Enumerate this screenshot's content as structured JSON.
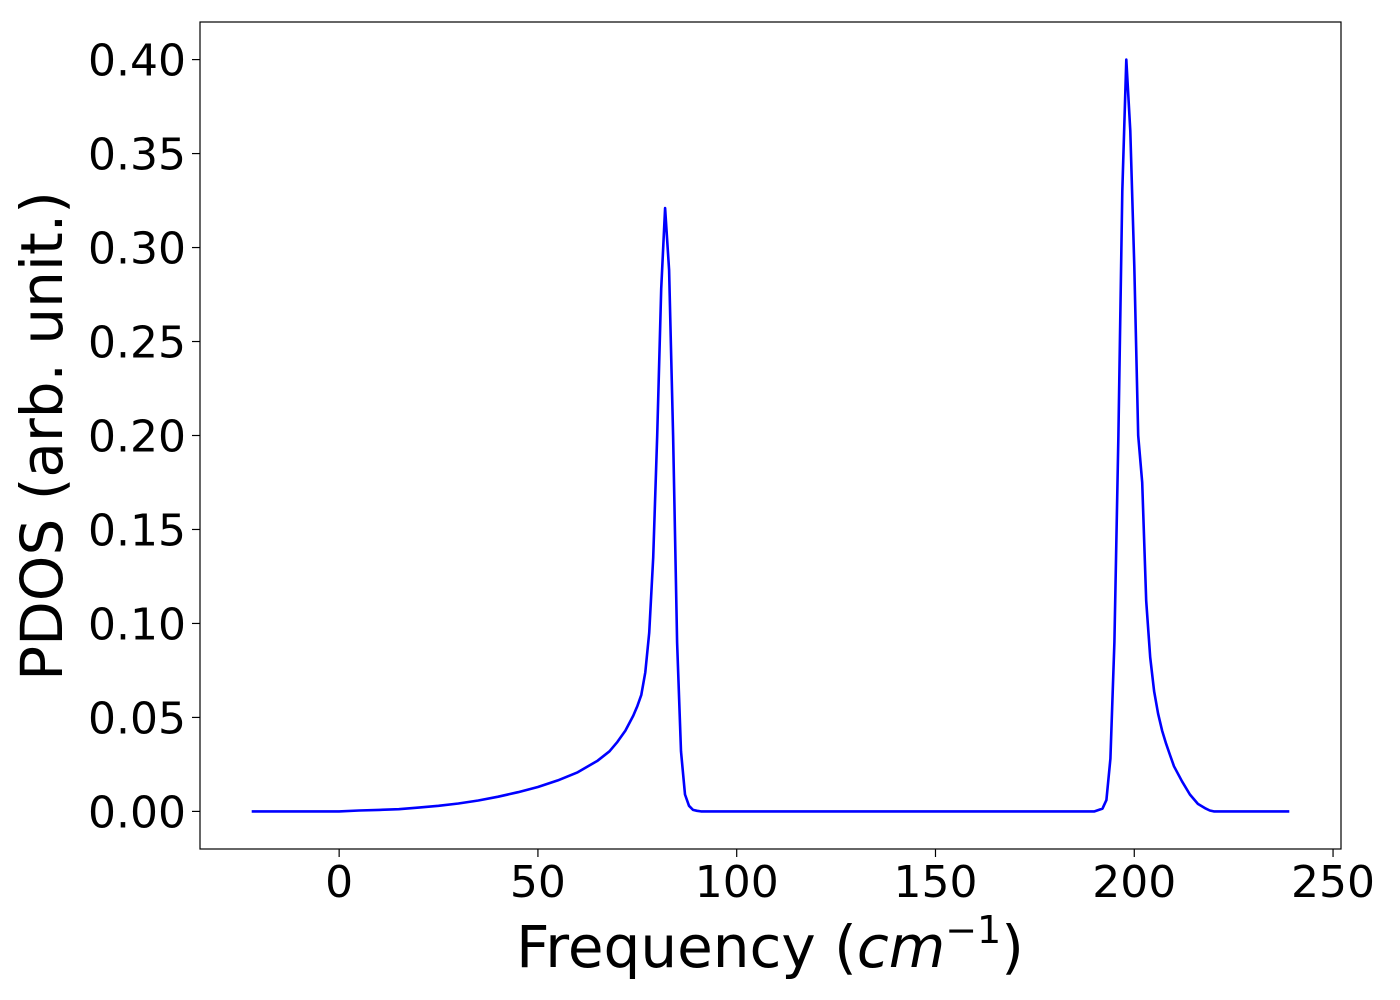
{
  "chart_data": {
    "type": "line",
    "title": "",
    "xlabel_main": "Frequency (",
    "xlabel_unit": "cm",
    "xlabel_exp": "−1",
    "xlabel_close": ")",
    "ylabel": "PDOS (arb. unit.)",
    "xlim": [
      -35,
      252
    ],
    "ylim": [
      -0.02,
      0.42
    ],
    "xticks": [
      0,
      50,
      100,
      150,
      200,
      250
    ],
    "xtick_labels": [
      "0",
      "50",
      "100",
      "150",
      "200",
      "250"
    ],
    "yticks": [
      0.0,
      0.05,
      0.1,
      0.15,
      0.2,
      0.25,
      0.3,
      0.35,
      0.4
    ],
    "ytick_labels": [
      "0.00",
      "0.05",
      "0.10",
      "0.15",
      "0.20",
      "0.25",
      "0.30",
      "0.35",
      "0.40"
    ],
    "grid": false,
    "series": [
      {
        "color": "#0000ff",
        "x": [
          -22,
          -10,
          0,
          5,
          10,
          15,
          20,
          25,
          30,
          35,
          40,
          45,
          50,
          55,
          60,
          65,
          68,
          70,
          72,
          74,
          75,
          76,
          77,
          78,
          79,
          80,
          81,
          82,
          83,
          84,
          85,
          86,
          87,
          88,
          89,
          90,
          91,
          95,
          100,
          150,
          190,
          192,
          193,
          194,
          195,
          196,
          197,
          198,
          199,
          200,
          201,
          202,
          203,
          204,
          205,
          206,
          207,
          208,
          209,
          210,
          212,
          214,
          216,
          218,
          219,
          220,
          221,
          222,
          225,
          230,
          239
        ],
        "y": [
          0.0,
          0.0,
          0.0,
          0.0005,
          0.0008,
          0.0012,
          0.002,
          0.003,
          0.0042,
          0.0058,
          0.0078,
          0.0102,
          0.013,
          0.0165,
          0.0208,
          0.027,
          0.032,
          0.037,
          0.043,
          0.051,
          0.056,
          0.062,
          0.074,
          0.095,
          0.135,
          0.2,
          0.278,
          0.321,
          0.288,
          0.2,
          0.09,
          0.032,
          0.009,
          0.003,
          0.0008,
          0.0003,
          0.0,
          0.0,
          0.0,
          0.0,
          0.0,
          0.0015,
          0.006,
          0.028,
          0.09,
          0.2,
          0.33,
          0.4,
          0.362,
          0.29,
          0.2,
          0.175,
          0.112,
          0.082,
          0.064,
          0.052,
          0.043,
          0.036,
          0.03,
          0.024,
          0.016,
          0.009,
          0.004,
          0.0015,
          0.0005,
          0.0,
          0.0,
          0.0,
          0.0,
          0.0,
          0.0
        ]
      }
    ]
  }
}
